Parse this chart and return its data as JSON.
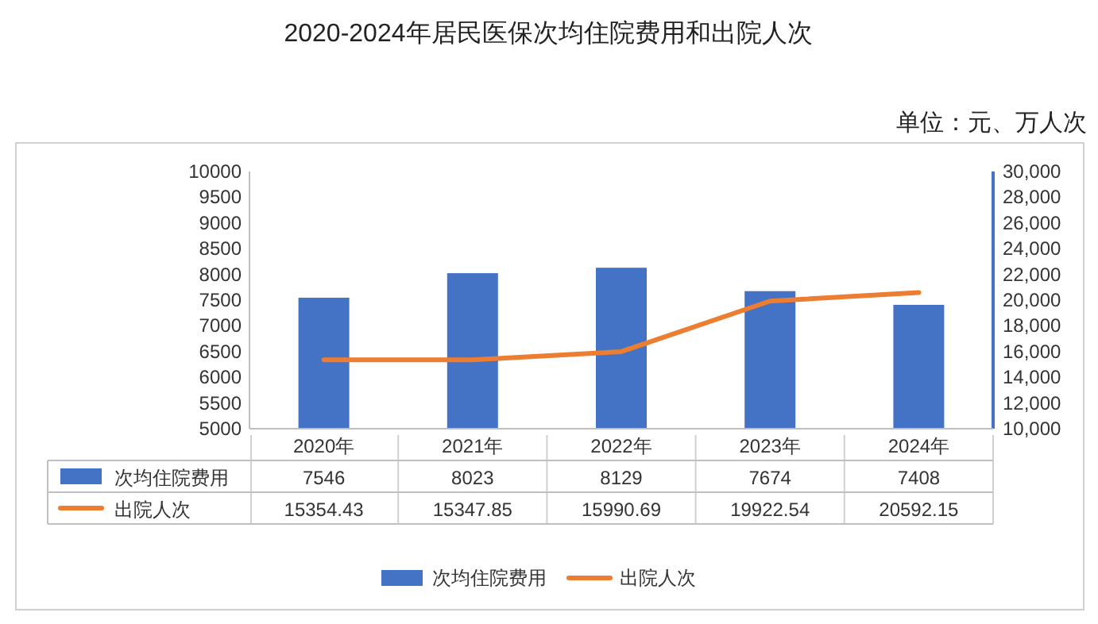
{
  "chart_data": {
    "type": "bar",
    "title": "2020-2024年居民医保次均住院费用和出院人次",
    "annotations": [
      "单位：元、万人次"
    ],
    "categories": [
      "2020年",
      "2021年",
      "2022年",
      "2023年",
      "2024年"
    ],
    "series": [
      {
        "name": "次均住院费用",
        "color": "#4472c4",
        "values": [
          7546,
          8023,
          8129,
          7674,
          7408
        ]
      },
      {
        "name": "出院人次",
        "type": "line",
        "axis": "y2",
        "color": "#ed7d31",
        "values": [
          15354.43,
          15347.85,
          15990.69,
          19922.54,
          20592.15
        ]
      }
    ],
    "ylim": [
      5000,
      10000
    ],
    "yticks": [
      5000,
      5500,
      6000,
      6500,
      7000,
      7500,
      8000,
      8500,
      9000,
      9500,
      10000
    ],
    "y2lim": [
      10000,
      30000
    ],
    "y2ticks": [
      {
        "value": 10000,
        "label": "10,000"
      },
      {
        "value": 12000,
        "label": "12,000"
      },
      {
        "value": 14000,
        "label": "14,000"
      },
      {
        "value": 16000,
        "label": "16,000"
      },
      {
        "value": 18000,
        "label": "18,000"
      },
      {
        "value": 20000,
        "label": "20,000"
      },
      {
        "value": 22000,
        "label": "22,000"
      },
      {
        "value": 24000,
        "label": "24,000"
      },
      {
        "value": 26000,
        "label": "26,000"
      },
      {
        "value": 28000,
        "label": "28,000"
      },
      {
        "value": 30000,
        "label": "30,000"
      }
    ],
    "data_labels": true,
    "legend": "bottom"
  }
}
